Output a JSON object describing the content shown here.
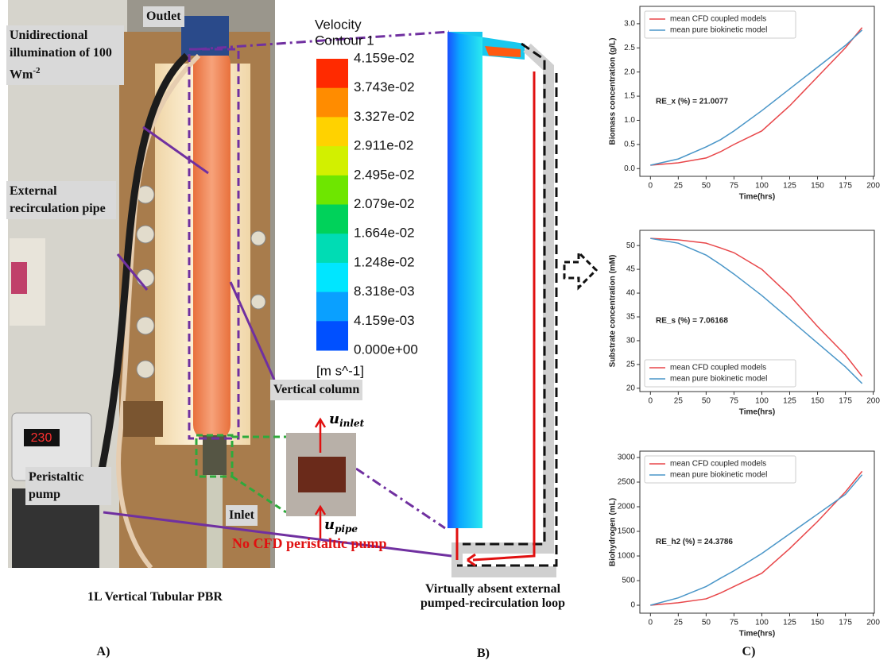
{
  "panel_a": {
    "outlet": "Outlet",
    "illumination": "Unidirectional illumination of",
    "illumination_value": "100 Wm",
    "illumination_exp": "-2",
    "pipe": "External recirculation pipe",
    "column": "Vertical column",
    "pump": "Peristaltic pump",
    "inlet": "Inlet",
    "pump_display": "230",
    "u_inlet": {
      "symbol": "u",
      "subscript": "inlet"
    },
    "u_pipe": {
      "symbol": "u",
      "subscript": "pipe"
    },
    "no_cfd_pump": "No CFD peristaltic pump",
    "caption": "1L Vertical Tubular PBR",
    "letter": "A)"
  },
  "panel_b": {
    "colorbar": {
      "title": "Velocity",
      "subtitle": "Contour 1",
      "levels": [
        "4.159e-02",
        "3.743e-02",
        "3.327e-02",
        "2.911e-02",
        "2.495e-02",
        "2.079e-02",
        "1.664e-02",
        "1.248e-02",
        "8.318e-03",
        "4.159e-03",
        "0.000e+00"
      ],
      "colors": [
        "#ff2a00",
        "#ff8c00",
        "#ffd200",
        "#d2f000",
        "#6ee600",
        "#00d25a",
        "#00dcb4",
        "#00e6ff",
        "#0aa0ff",
        "#0050ff"
      ],
      "unit": "[m s^-1]"
    },
    "caption_line1": "Virtually absent external",
    "caption_line2": "pumped-recirculation loop",
    "letter": "B)"
  },
  "panel_c": {
    "letter": "C)"
  },
  "chart_data": [
    {
      "type": "line",
      "xlabel": "Time(hrs)",
      "ylabel": "Biomass concentration (g/L)",
      "annotation": "RE_x (%) = 21.0077",
      "x": [
        0,
        25,
        50,
        63,
        75,
        100,
        125,
        150,
        175,
        190
      ],
      "series": [
        {
          "name": "mean CFD coupled models",
          "color": "#e8474a",
          "values": [
            0.07,
            0.12,
            0.22,
            0.35,
            0.5,
            0.78,
            1.3,
            1.9,
            2.5,
            2.92
          ]
        },
        {
          "name": "mean pure biokinetic model",
          "color": "#4a96c8",
          "values": [
            0.07,
            0.2,
            0.45,
            0.6,
            0.78,
            1.2,
            1.65,
            2.1,
            2.55,
            2.87
          ]
        }
      ],
      "xlim": [
        -9.5,
        201
      ],
      "ylim": [
        -0.16,
        3.36
      ],
      "xticks": [
        0,
        25,
        50,
        75,
        100,
        125,
        150,
        175,
        200
      ],
      "yticks": [
        {
          "value": 0,
          "label": "0.0"
        },
        0.5,
        {
          "value": 1,
          "label": "1.0"
        },
        1.5,
        {
          "value": 2,
          "label": "2.0"
        },
        2.5,
        {
          "value": 3,
          "label": "3.0"
        }
      ],
      "legend": "upper left"
    },
    {
      "type": "line",
      "xlabel": "Time(hrs)",
      "ylabel": "Substrate concentration (mM)",
      "annotation": "RE_s (%) = 7.06168",
      "x": [
        0,
        25,
        50,
        63,
        75,
        100,
        125,
        150,
        175,
        190
      ],
      "series": [
        {
          "name": "mean CFD coupled models",
          "color": "#e8474a",
          "values": [
            51.5,
            51.2,
            50.5,
            49.5,
            48.5,
            45,
            39.5,
            33,
            27,
            22.5
          ]
        },
        {
          "name": "mean pure biokinetic model",
          "color": "#4a96c8",
          "values": [
            51.5,
            50.5,
            48,
            46,
            44,
            39.5,
            34.5,
            29.5,
            24.5,
            21
          ]
        }
      ],
      "xlim": [
        -9.5,
        201
      ],
      "ylim": [
        19.3,
        53.2
      ],
      "xticks": [
        0,
        25,
        50,
        75,
        100,
        125,
        150,
        175,
        200
      ],
      "yticks": [
        20,
        25,
        30,
        35,
        40,
        45,
        50
      ],
      "legend": "lower left"
    },
    {
      "type": "line",
      "xlabel": "Time(hrs)",
      "ylabel": "Biohydrogen (mL)",
      "annotation": "RE_h2 (%) = 24.3786",
      "x": [
        0,
        25,
        50,
        63,
        75,
        100,
        125,
        150,
        175,
        190
      ],
      "series": [
        {
          "name": "mean CFD coupled models",
          "color": "#e8474a",
          "values": [
            0,
            50,
            130,
            250,
            380,
            650,
            1150,
            1700,
            2300,
            2720
          ]
        },
        {
          "name": "mean pure biokinetic model",
          "color": "#4a96c8",
          "values": [
            0,
            150,
            380,
            550,
            700,
            1050,
            1450,
            1850,
            2250,
            2650
          ]
        }
      ],
      "xlim": [
        -9.5,
        201
      ],
      "ylim": [
        -161,
        3129
      ],
      "xticks": [
        0,
        25,
        50,
        75,
        100,
        125,
        150,
        175,
        200
      ],
      "yticks": [
        0,
        500,
        1000,
        1500,
        2000,
        2500,
        3000
      ],
      "legend": "upper left"
    }
  ]
}
